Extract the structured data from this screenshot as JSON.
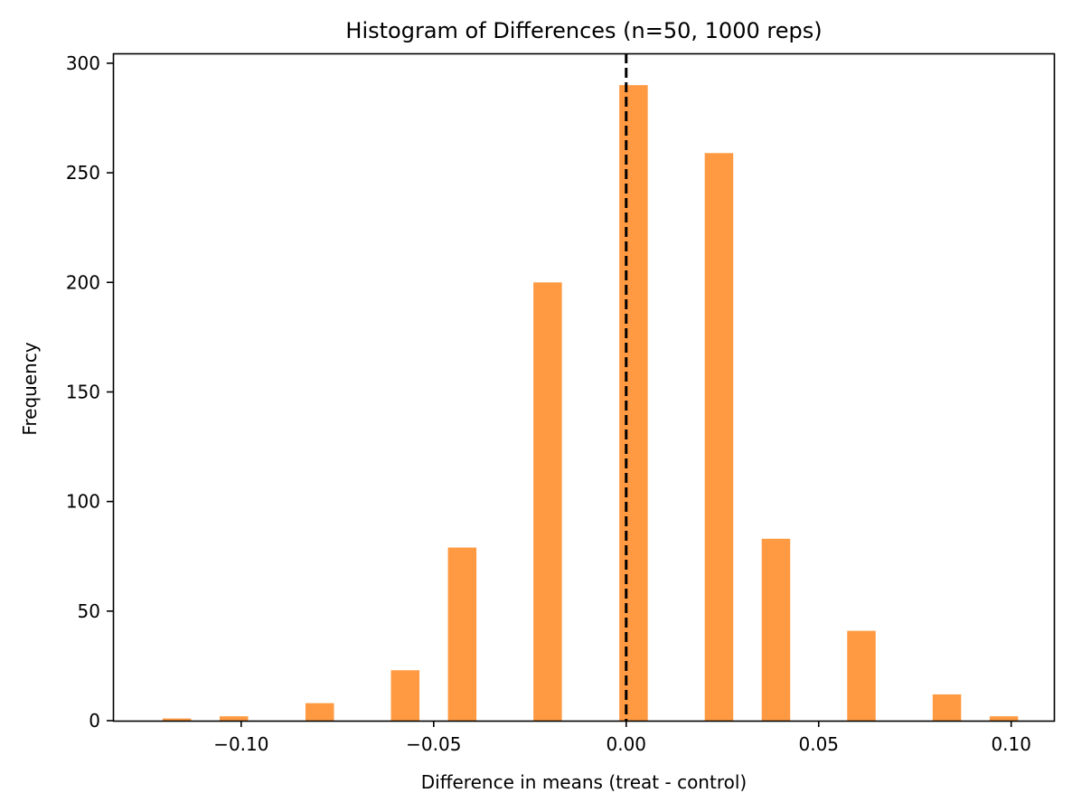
{
  "chart_data": {
    "type": "bar",
    "title": "Histogram of Differences (n=50, 1000 reps)",
    "xlabel": "Difference in means (treat - control)",
    "ylabel": "Frequency",
    "xlim": [
      -0.1333,
      0.1111
    ],
    "ylim": [
      0,
      304.5
    ],
    "bar_width": 0.0074,
    "bar_color": "#ff9a42",
    "grid": false,
    "legend": "none",
    "bins": [
      {
        "x": -0.1167,
        "value": 1
      },
      {
        "x": -0.1019,
        "value": 2
      },
      {
        "x": -0.0796,
        "value": 8
      },
      {
        "x": -0.0574,
        "value": 23
      },
      {
        "x": -0.0426,
        "value": 79
      },
      {
        "x": -0.0204,
        "value": 200
      },
      {
        "x": 0.0019,
        "value": 290
      },
      {
        "x": 0.0241,
        "value": 259
      },
      {
        "x": 0.0389,
        "value": 83
      },
      {
        "x": 0.0611,
        "value": 41
      },
      {
        "x": 0.0833,
        "value": 12
      },
      {
        "x": 0.0981,
        "value": 2
      }
    ],
    "x_ticks": [
      {
        "value": -0.1,
        "label": "−0.10"
      },
      {
        "value": -0.05,
        "label": "−0.05"
      },
      {
        "value": 0.0,
        "label": "0.00"
      },
      {
        "value": 0.05,
        "label": "0.05"
      },
      {
        "value": 0.1,
        "label": "0.10"
      }
    ],
    "y_ticks": [
      {
        "value": 0,
        "label": "0"
      },
      {
        "value": 50,
        "label": "50"
      },
      {
        "value": 100,
        "label": "100"
      },
      {
        "value": 150,
        "label": "150"
      },
      {
        "value": 200,
        "label": "200"
      },
      {
        "value": 250,
        "label": "250"
      },
      {
        "value": 300,
        "label": "300"
      }
    ],
    "reference_line": {
      "x": 0,
      "style": "dashed",
      "color": "#000000"
    }
  }
}
